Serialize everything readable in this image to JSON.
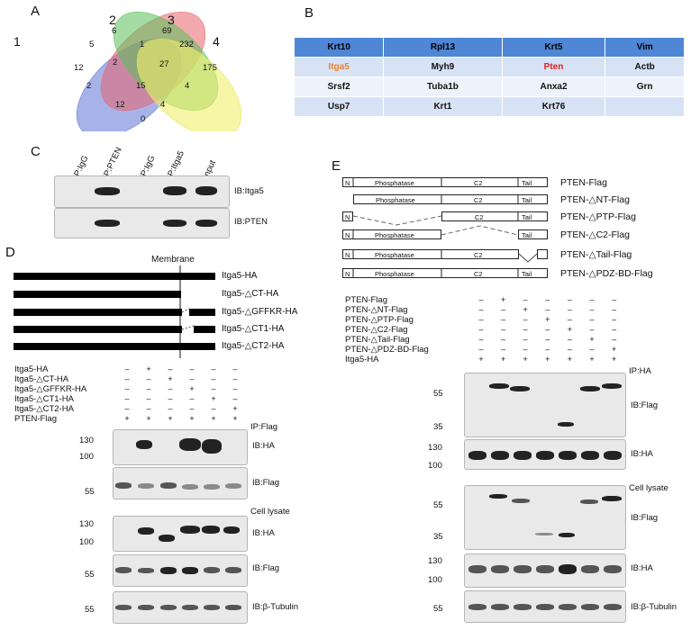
{
  "panels": {
    "a": "A",
    "b": "B",
    "c": "C",
    "d": "D",
    "e": "E"
  },
  "venn": {
    "set_labels": [
      "1",
      "2",
      "3",
      "4"
    ],
    "counts": [
      "12",
      "5",
      "6",
      "1",
      "69",
      "232",
      "175",
      "2",
      "2",
      "27",
      "4",
      "15",
      "12",
      "4",
      "0"
    ]
  },
  "gene_table": {
    "rows": [
      [
        "Krt10",
        "Rpl13",
        "Krt5",
        "Vim"
      ],
      [
        "Itga5",
        "Myh9",
        "Pten",
        "Actb"
      ],
      [
        "Srsf2",
        "Tuba1b",
        "Anxa2",
        "Grn"
      ],
      [
        "Usp7",
        "Krt1",
        "Krt76",
        ""
      ]
    ],
    "colors": {
      "header_bg": "#4f86d6",
      "itga5": "#f07f2a",
      "pten": "#e0201b"
    }
  },
  "panel_c": {
    "lanes": [
      "IP:IgG",
      "IP:PTEN",
      "IP:IgG",
      "IP:Itga5",
      "Input"
    ],
    "blots": [
      "IB:Itga5",
      "IB:PTEN"
    ]
  },
  "panel_d": {
    "membrane_label": "Membrane",
    "constructs": [
      "Itga5-HA",
      "Itga5-△CT-HA",
      "Itga5-△GFFKR-HA",
      "Itga5-△CT1-HA",
      "Itga5-△CT2-HA"
    ],
    "rows": [
      "Itga5-HA",
      "Itga5-△CT-HA",
      "Itga5-△GFFKR-HA",
      "Itga5-△CT1-HA",
      "Itga5-△CT2-HA",
      "PTEN-Flag"
    ],
    "signs": [
      [
        "–",
        "+",
        "–",
        "–",
        "–",
        "–"
      ],
      [
        "–",
        "–",
        "+",
        "–",
        "–",
        "–"
      ],
      [
        "–",
        "–",
        "–",
        "+",
        "–",
        "–"
      ],
      [
        "–",
        "–",
        "–",
        "–",
        "+",
        "–"
      ],
      [
        "–",
        "–",
        "–",
        "–",
        "–",
        "+"
      ],
      [
        "+",
        "+",
        "+",
        "+",
        "+",
        "+"
      ]
    ],
    "section_labels": {
      "ip": "IP:Flag",
      "lysate": "Cell lysate"
    },
    "blots": [
      "IB:HA",
      "IB:Flag",
      "IB:HA",
      "IB:Flag",
      "IB:β-Tubulin"
    ],
    "markers": [
      "130",
      "100",
      "55",
      "130",
      "100",
      "55",
      "55"
    ]
  },
  "panel_e": {
    "domains": {
      "n": "N",
      "phosphatase": "Phosphatase",
      "c2": "C2",
      "tail": "Tail"
    },
    "constructs": [
      "PTEN-Flag",
      "PTEN-△NT-Flag",
      "PTEN-△PTP-Flag",
      "PTEN-△C2-Flag",
      "PTEN-△Tail-Flag",
      "PTEN-△PDZ-BD-Flag"
    ],
    "rows": [
      "PTEN-Flag",
      "PTEN-△NT-Flag",
      "PTEN-△PTP-Flag",
      "PTEN-△C2-Flag",
      "PTEN-△Tail-Flag",
      "PTEN-△PDZ-BD-Flag",
      "Itga5-HA"
    ],
    "signs": [
      [
        "–",
        "+",
        "–",
        "–",
        "–",
        "–",
        "–"
      ],
      [
        "–",
        "–",
        "+",
        "–",
        "–",
        "–",
        "–"
      ],
      [
        "–",
        "–",
        "–",
        "+",
        "–",
        "–",
        "–"
      ],
      [
        "–",
        "–",
        "–",
        "–",
        "+",
        "–",
        "–"
      ],
      [
        "–",
        "–",
        "–",
        "–",
        "–",
        "+",
        "–"
      ],
      [
        "–",
        "–",
        "–",
        "–",
        "–",
        "–",
        "+"
      ],
      [
        "+",
        "+",
        "+",
        "+",
        "+",
        "+",
        "+"
      ]
    ],
    "section_labels": {
      "ip": "IP:HA",
      "lysate": "Cell lysate"
    },
    "blots": [
      "IB:Flag",
      "IB:HA",
      "IB:Flag",
      "IB:HA",
      "IB:β-Tubulin"
    ],
    "markers": [
      "55",
      "35",
      "130",
      "100",
      "55",
      "35",
      "130",
      "100",
      "55"
    ]
  }
}
